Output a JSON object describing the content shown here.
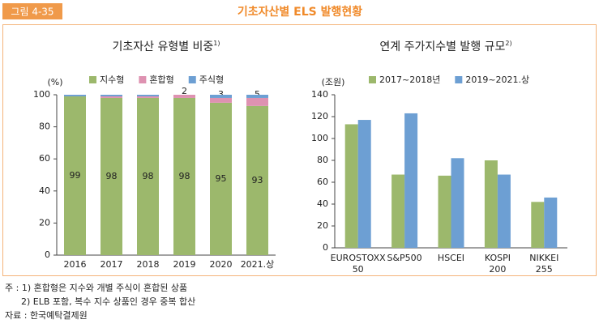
{
  "header": {
    "label": "그림 4-35",
    "title": "기초자산별 ELS 발행현황"
  },
  "chart_data": [
    {
      "type": "stacked_bar",
      "title": "기초자산 유형별 비중",
      "title_note": "1)",
      "y_unit": "(%)",
      "categories": [
        "2016",
        "2017",
        "2018",
        "2019",
        "2020",
        "2021.상"
      ],
      "series": [
        {
          "name": "지수형",
          "color": "#9cb86c",
          "values": [
            99,
            98,
            98,
            98,
            95,
            93
          ]
        },
        {
          "name": "혼합형",
          "color": "#de92b1",
          "values": [
            0,
            1,
            1,
            2,
            3,
            5
          ],
          "value_labels": [
            null,
            null,
            null,
            "2",
            "3",
            "5"
          ]
        },
        {
          "name": "주식형",
          "color": "#6d9fd3",
          "values": [
            1,
            1,
            1,
            0,
            2,
            2
          ]
        }
      ],
      "ylim": [
        0,
        100
      ],
      "yticks": [
        0,
        20,
        40,
        60,
        80,
        100
      ]
    },
    {
      "type": "grouped_bar",
      "title": "연계 주가지수별 발행 규모",
      "title_note": "2)",
      "y_unit": "(조원)",
      "categories": [
        [
          "EUROSTOXX",
          "50"
        ],
        [
          "S&P500"
        ],
        [
          "HSCEI"
        ],
        [
          "KOSPI",
          "200"
        ],
        [
          "NIKKEI",
          "255"
        ]
      ],
      "series": [
        {
          "name": "2017~2018년",
          "color": "#9cb86c",
          "values": [
            113,
            67,
            66,
            80,
            42
          ]
        },
        {
          "name": "2019~2021.상",
          "color": "#6d9fd3",
          "values": [
            117,
            123,
            82,
            67,
            46
          ]
        }
      ],
      "ylim": [
        0,
        140
      ],
      "yticks": [
        0,
        20,
        40,
        60,
        80,
        100,
        120,
        140
      ]
    }
  ],
  "notes": [
    "주 : 1) 혼합형은 지수와 개별 주식이 혼합된 상품",
    "2) ELB 포함, 복수 지수 상품인 경우 중복 합산",
    "자료 : 한국예탁결제원"
  ]
}
